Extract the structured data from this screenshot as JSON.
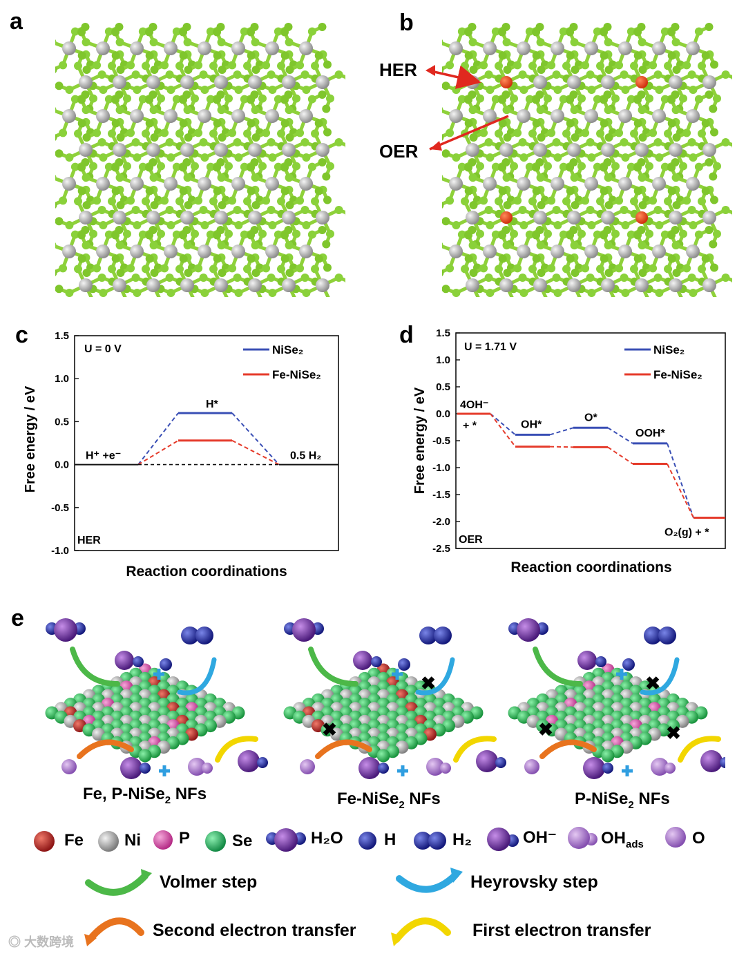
{
  "panels": {
    "a": {
      "label": "a"
    },
    "b": {
      "label": "b",
      "annotations": [
        "HER",
        "OER"
      ]
    },
    "e": {
      "label": "e"
    }
  },
  "chart_data": [
    {
      "panel": "c",
      "type": "line",
      "ylabel": "Free energy / eV",
      "xlabel": "Reaction coordinations",
      "ylim": [
        -1.0,
        1.5
      ],
      "yticks": [
        "1.5",
        "1.0",
        "0.5",
        "0.0",
        "-0.5",
        "-1.0"
      ],
      "condition": "U = 0 V",
      "reaction": "HER",
      "legend_position": "top-right",
      "states": [
        "H⁺ +e⁻",
        "H*",
        "0.5 H₂"
      ],
      "series": [
        {
          "name": "NiSe₂",
          "color": "#3a4fb5",
          "values": [
            0.0,
            0.6,
            0.0
          ]
        },
        {
          "name": "Fe-NiSe₂",
          "color": "#e53a2a",
          "values": [
            0.0,
            0.28,
            0.0
          ]
        }
      ]
    },
    {
      "panel": "d",
      "type": "line",
      "ylabel": "Free energy / eV",
      "xlabel": "Reaction coordinations",
      "ylim": [
        -2.5,
        1.5
      ],
      "yticks": [
        "1.5",
        "1.0",
        "0.5",
        "0.0",
        "-0.5",
        "-1.0",
        "-1.5",
        "-2.0",
        "-2.5"
      ],
      "condition": "U = 1.71 V",
      "reaction": "OER",
      "legend_position": "top-right",
      "states": [
        "4OH⁻",
        "+ *",
        "OH*",
        "O*",
        "OOH*",
        "O₂(g) + *"
      ],
      "series": [
        {
          "name": "NiSe₂",
          "color": "#3a4fb5",
          "values": [
            0.0,
            -0.39,
            -0.26,
            -0.55,
            -1.93
          ]
        },
        {
          "name": "Fe-NiSe₂",
          "color": "#e53a2a",
          "values": [
            0.0,
            -0.61,
            -0.62,
            -0.93,
            -1.93
          ]
        }
      ]
    }
  ],
  "schematics": [
    {
      "caption_main": "Fe, P-NiSe",
      "caption_sub": "2",
      "caption_end": " NFs"
    },
    {
      "caption_main": "Fe-NiSe",
      "caption_sub": "2",
      "caption_end": " NFs"
    },
    {
      "caption_main": "P-NiSe",
      "caption_sub": "2",
      "caption_end": " NFs"
    }
  ],
  "legend": {
    "atoms": [
      {
        "label": "Fe",
        "color": "#b3201f"
      },
      {
        "label": "Ni",
        "color": "#a8a8a8"
      },
      {
        "label": "P",
        "color": "#d84aa6"
      },
      {
        "label": "Se",
        "color": "#27b565"
      }
    ],
    "h2o": "H₂O",
    "h": "H",
    "h2": "H₂",
    "oh": "OH⁻",
    "ohads_main": "OH",
    "ohads_sub": "ads",
    "o": "O",
    "steps": [
      {
        "label": "Volmer step",
        "color": "#4cb848"
      },
      {
        "label": "Heyrovsky step",
        "color": "#2fa8e0"
      },
      {
        "label": "Second electron transfer",
        "color": "#e8731e"
      },
      {
        "label": "First electron transfer",
        "color": "#f2d600"
      }
    ]
  },
  "watermark": "大数跨境"
}
